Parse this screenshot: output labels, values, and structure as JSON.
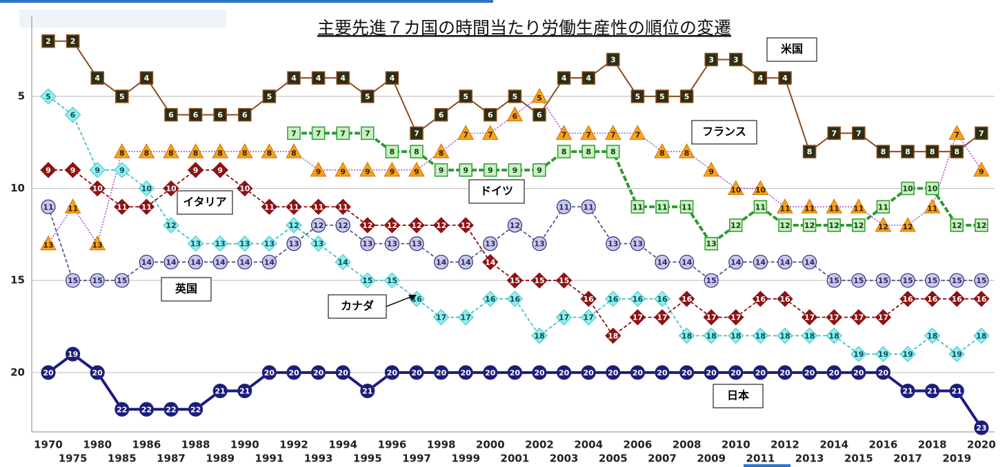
{
  "chart_data": {
    "type": "line",
    "title": "主要先進７カ国の時間当たり労働生産性の順位の変遷",
    "categories": [
      "1970",
      "1975",
      "1980",
      "1985",
      "1986",
      "1987",
      "1988",
      "1989",
      "1990",
      "1991",
      "1992",
      "1993",
      "1994",
      "1995",
      "1996",
      "1997",
      "1998",
      "1999",
      "2000",
      "2001",
      "2002",
      "2003",
      "2004",
      "2005",
      "2006",
      "2007",
      "2008",
      "2009",
      "2010",
      "2011",
      "2012",
      "2013",
      "2014",
      "2015",
      "2016",
      "2017",
      "2018",
      "2019",
      "2020"
    ],
    "ylim": [
      1,
      23
    ],
    "y_inverted": true,
    "yticks": [
      5,
      10,
      15,
      20
    ],
    "grid": true,
    "series": [
      {
        "name": "米国",
        "color": "#8b4a1c",
        "marker": "square",
        "marker_fill": "#2e2e12",
        "text_color": "#fff",
        "line_style": "solid",
        "values": [
          2,
          2,
          4,
          5,
          4,
          6,
          6,
          6,
          6,
          5,
          4,
          4,
          4,
          5,
          4,
          7,
          6,
          5,
          6,
          5,
          6,
          4,
          4,
          3,
          5,
          5,
          5,
          3,
          3,
          4,
          4,
          8,
          7,
          7,
          8,
          8,
          8,
          8,
          7
        ]
      },
      {
        "name": "フランス",
        "color": "#b050c8",
        "marker": "triangle",
        "marker_fill": "#f7a21b",
        "text_color": "#3a2000",
        "line_style": "dotted",
        "values": [
          13,
          11,
          13,
          8,
          8,
          8,
          8,
          8,
          8,
          8,
          8,
          9,
          9,
          9,
          9,
          9,
          8,
          7,
          7,
          6,
          5,
          7,
          7,
          7,
          7,
          8,
          8,
          9,
          10,
          10,
          11,
          11,
          11,
          11,
          12,
          12,
          11,
          7,
          9
        ]
      },
      {
        "name": "ドイツ",
        "color": "#2f9a2f",
        "marker": "square",
        "marker_fill": "#c9f1c3",
        "text_color": "#0e3d0e",
        "line_style": "thick-dashed",
        "values": [
          null,
          null,
          null,
          null,
          null,
          null,
          null,
          null,
          null,
          null,
          7,
          7,
          7,
          7,
          8,
          8,
          9,
          9,
          9,
          9,
          9,
          8,
          8,
          8,
          11,
          11,
          11,
          13,
          12,
          11,
          12,
          12,
          12,
          12,
          11,
          10,
          10,
          12,
          12
        ]
      },
      {
        "name": "イタリア",
        "color": "#8c0a0a",
        "marker": "diamond",
        "marker_fill": "#8c1414",
        "text_color": "#fff",
        "line_style": "dashed",
        "values": [
          9,
          9,
          10,
          11,
          11,
          10,
          9,
          9,
          10,
          11,
          11,
          11,
          11,
          12,
          12,
          12,
          12,
          12,
          14,
          15,
          15,
          15,
          16,
          18,
          17,
          17,
          16,
          17,
          17,
          16,
          16,
          17,
          17,
          17,
          17,
          16,
          16,
          16,
          16
        ]
      },
      {
        "name": "英国",
        "color": "#55558a",
        "marker": "circle",
        "marker_fill": "#c9c9ef",
        "text_color": "#2a2a60",
        "line_style": "dashed",
        "values": [
          11,
          15,
          15,
          15,
          14,
          14,
          14,
          14,
          14,
          14,
          13,
          12,
          12,
          13,
          13,
          13,
          14,
          14,
          13,
          12,
          13,
          11,
          11,
          13,
          13,
          14,
          14,
          15,
          14,
          14,
          14,
          14,
          15,
          15,
          15,
          15,
          15,
          15,
          15
        ]
      },
      {
        "name": "カナダ",
        "color": "#3fc2c2",
        "marker": "diamond",
        "marker_fill": "#8ff0ee",
        "text_color": "#0a4d5a",
        "line_style": "dashed",
        "values": [
          5,
          6,
          9,
          9,
          10,
          12,
          13,
          13,
          13,
          13,
          12,
          13,
          14,
          15,
          15,
          16,
          17,
          17,
          16,
          16,
          18,
          17,
          17,
          16,
          16,
          16,
          18,
          18,
          18,
          18,
          18,
          18,
          18,
          19,
          19,
          19,
          18,
          19,
          18
        ]
      },
      {
        "name": "日本",
        "color": "#1b1b80",
        "marker": "circle",
        "marker_fill": "#1b1b80",
        "text_color": "#fff",
        "line_style": "thick",
        "values": [
          20,
          19,
          20,
          22,
          22,
          22,
          22,
          21,
          21,
          20,
          20,
          20,
          20,
          21,
          20,
          20,
          20,
          20,
          20,
          20,
          20,
          20,
          20,
          20,
          20,
          20,
          20,
          20,
          20,
          20,
          20,
          20,
          20,
          20,
          20,
          21,
          21,
          21,
          23
        ]
      }
    ]
  }
}
